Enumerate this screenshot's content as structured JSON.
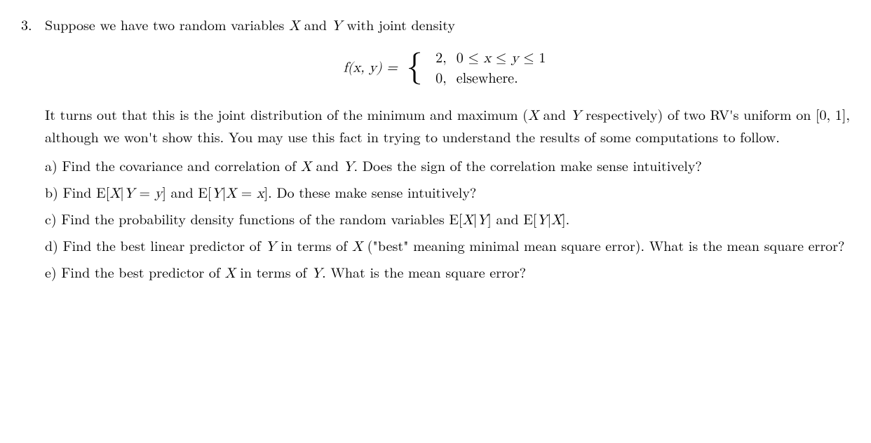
{
  "problem_number": "3.",
  "intro_text_before_X": "Suppose we have two random variables ",
  "intro_X": "X",
  "intro_and": " and ",
  "intro_Y": "Y",
  "intro_tail": " with joint density",
  "equation": {
    "lhs": "f(x, y) = ",
    "case1_value": "2,",
    "case1_cond": "0 ≤ x ≤ y ≤ 1",
    "case2_value": "0,",
    "case2_cond": "elsewhere."
  },
  "context_p1": "It turns out that this is the joint distribution of the minimum and maximum (",
  "context_X": "X",
  "context_and": " and ",
  "context_Y": "Y",
  "context_p2": " respectively) of two RV's uniform on ",
  "context_interval": "[0, 1]",
  "context_p3": ", although we won't show this. You may use this fact in trying to understand the results of some computations to follow.",
  "part_a": {
    "label": "a) ",
    "t1": "Find the covariance and correlation of ",
    "X": "X",
    "and": " and ",
    "Y": "Y",
    "t2": ". Does the sign of the correlation make sense intuitively?"
  },
  "part_b": {
    "label": "b) ",
    "t1": "Find ",
    "e1": "E[X|Y = y]",
    "and": " and ",
    "e2": "E[Y|X = x]",
    "t2": ". Do these make sense intuitively?"
  },
  "part_c": {
    "label": "c) ",
    "t1": "Find the probability density functions of the random variables ",
    "e1": "E[X|Y]",
    "and": " and ",
    "e2": "E[Y|X]",
    "t2": "."
  },
  "part_d": {
    "label": "d) ",
    "t1": "Find the best linear predictor of ",
    "Y": "Y",
    "t2": " in terms of ",
    "X": "X",
    "t3": " (\"best\" meaning minimal mean square error). What is the mean square error?"
  },
  "part_e": {
    "label": "e) ",
    "t1": "Find the best predictor of ",
    "X": "X",
    "t2": " in terms of ",
    "Y": "Y",
    "t3": ". What is the mean square error?"
  }
}
